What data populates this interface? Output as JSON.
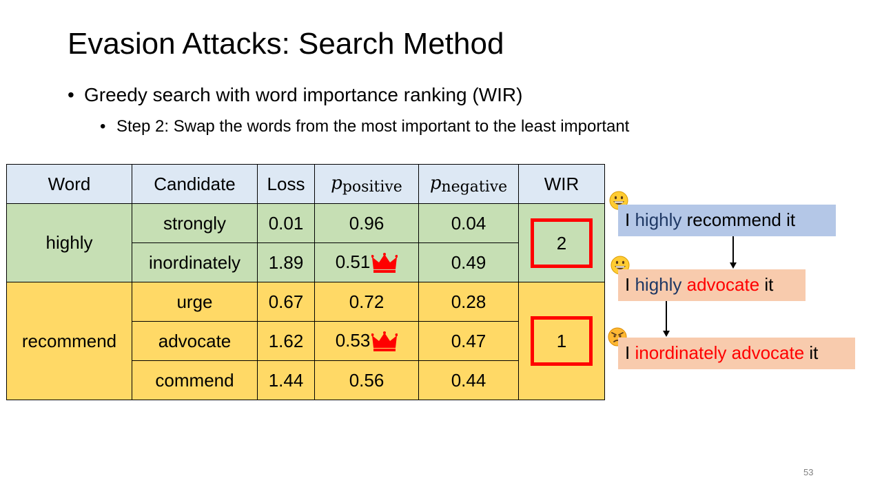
{
  "slide": {
    "title": "Evasion Attacks: Search Method",
    "bullet1": "Greedy search with word importance ranking (WIR)",
    "bullet2": "Step 2: Swap the words from the most important to the least important",
    "page_number": "53"
  },
  "table": {
    "headers": {
      "word": "Word",
      "candidate": "Candidate",
      "loss": "Loss",
      "p_symbol": "p",
      "positive_sub": "positive",
      "negative_sub": "negative",
      "wir": "WIR"
    },
    "groups": [
      {
        "word": "highly",
        "wir": "2",
        "rows": [
          {
            "candidate": "strongly",
            "loss": "0.01",
            "p_pos": "0.96",
            "p_neg": "0.04",
            "crown": false
          },
          {
            "candidate": "inordinately",
            "loss": "1.89",
            "p_pos": "0.51",
            "p_neg": "0.49",
            "crown": true
          }
        ]
      },
      {
        "word": "recommend",
        "wir": "1",
        "rows": [
          {
            "candidate": "urge",
            "loss": "0.67",
            "p_pos": "0.72",
            "p_neg": "0.28",
            "crown": false
          },
          {
            "candidate": "advocate",
            "loss": "1.62",
            "p_pos": "0.53",
            "p_neg": "0.47",
            "crown": true
          },
          {
            "candidate": "commend",
            "loss": "1.44",
            "p_pos": "0.56",
            "p_neg": "0.44",
            "crown": false
          }
        ]
      }
    ]
  },
  "sentences": {
    "s1": {
      "w1": "I ",
      "w2": "highly",
      "w3": " recommend it"
    },
    "s2": {
      "w1": "I ",
      "w2": "highly",
      "w3": " ",
      "w4": "advocate",
      "w5": " it"
    },
    "s3": {
      "w1": "I ",
      "w2": "inordinately advocate",
      "w3": " it"
    }
  },
  "colors": {
    "header_bg": "#dde8f4",
    "green_bg": "#c6dfb4",
    "yellow_bg": "#ffd966",
    "highlight_red": "#ff0000",
    "sentence_blue_bg": "#b4c7e7",
    "sentence_peach_bg": "#f8cbad"
  }
}
